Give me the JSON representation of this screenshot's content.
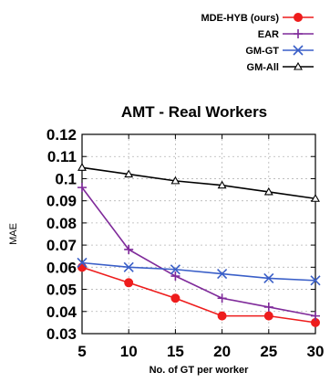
{
  "chart_data": {
    "type": "line",
    "title": "AMT - Real Workers",
    "xlabel": "No. of GT per worker",
    "ylabel": "MAE",
    "x": [
      5,
      10,
      15,
      20,
      25,
      30
    ],
    "xlim": [
      5,
      30
    ],
    "ylim": [
      0.03,
      0.12
    ],
    "x_ticks": [
      "5",
      "10",
      "15",
      "20",
      "25",
      "30"
    ],
    "y_ticks": [
      "0.03",
      "0.04",
      "0.05",
      "0.06",
      "0.07",
      "0.08",
      "0.09",
      "0.1",
      "0.11",
      "0.12"
    ],
    "grid": true,
    "legend_position": "top-right, outside plot",
    "series": [
      {
        "name": "MDE-HYB (ours)",
        "color": "#ee1c1c",
        "marker": "circle",
        "values": [
          0.06,
          0.053,
          0.046,
          0.038,
          0.038,
          0.035
        ]
      },
      {
        "name": "EAR",
        "color": "#7f2a9a",
        "marker": "plus",
        "values": [
          0.096,
          0.068,
          0.056,
          0.046,
          0.042,
          0.038
        ]
      },
      {
        "name": "GM-GT",
        "color": "#3a5fc8",
        "marker": "x",
        "values": [
          0.062,
          0.06,
          0.059,
          0.057,
          0.055,
          0.054
        ]
      },
      {
        "name": "GM-All",
        "color": "#000000",
        "marker": "triangle",
        "values": [
          0.105,
          0.102,
          0.099,
          0.097,
          0.094,
          0.091
        ]
      }
    ]
  }
}
